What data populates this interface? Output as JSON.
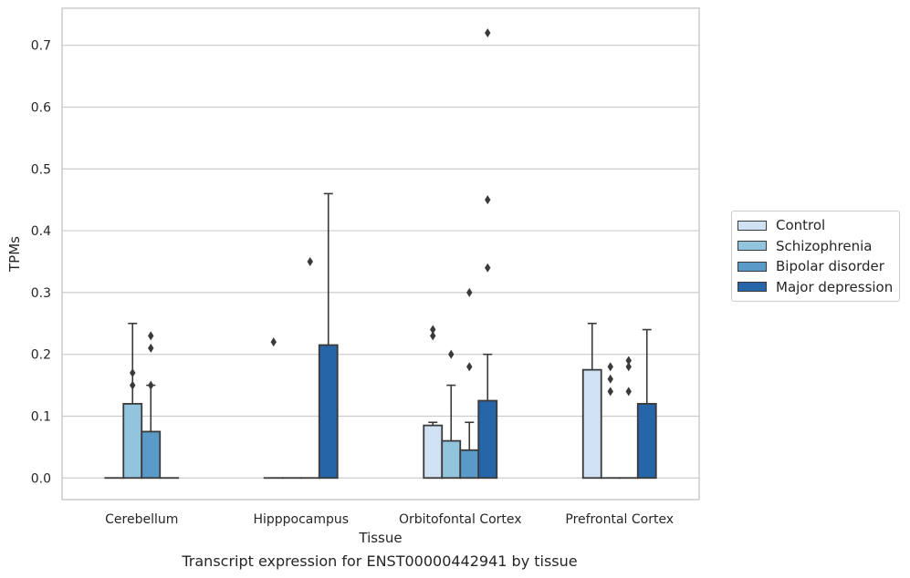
{
  "chart_data": {
    "type": "bar",
    "title": "Transcript expression for ENST00000442941 by tissue",
    "xlabel": "Tissue",
    "ylabel": "TPMs",
    "ylim": [
      -0.035,
      0.76
    ],
    "yticks": [
      "0.0",
      "0.1",
      "0.2",
      "0.3",
      "0.4",
      "0.5",
      "0.6",
      "0.7"
    ],
    "categories": [
      "Cerebellum",
      "Hipppocampus",
      "Orbitofontal Cortex",
      "Prefrontal Cortex"
    ],
    "grid": true,
    "legend_position": "right",
    "series": [
      {
        "name": "Control",
        "color": "#cfe1f2",
        "values": [
          0.0,
          0.0,
          0.085,
          0.175
        ],
        "whisker_high": [
          0.0,
          0.0,
          0.09,
          0.25
        ],
        "outliers": [
          [],
          [
            0.22
          ],
          [
            0.23,
            0.24
          ],
          []
        ]
      },
      {
        "name": "Schizophrenia",
        "color": "#93c4de",
        "values": [
          0.12,
          0.0,
          0.06,
          0.0
        ],
        "whisker_high": [
          0.25,
          0.0,
          0.15,
          0.0
        ],
        "outliers": [
          [
            0.15,
            0.17
          ],
          [],
          [
            0.2
          ],
          [
            0.14,
            0.16,
            0.18
          ]
        ]
      },
      {
        "name": "Bipolar disorder",
        "color": "#5a9ac8",
        "values": [
          0.075,
          0.0,
          0.045,
          0.0
        ],
        "whisker_high": [
          0.15,
          0.0,
          0.09,
          0.0
        ],
        "outliers": [
          [
            0.15,
            0.21,
            0.23
          ],
          [
            0.35
          ],
          [
            0.18,
            0.3
          ],
          [
            0.14,
            0.18,
            0.19
          ]
        ]
      },
      {
        "name": "Major depression",
        "color": "#2565a8",
        "values": [
          0.0,
          0.215,
          0.125,
          0.12
        ],
        "whisker_high": [
          0.0,
          0.46,
          0.2,
          0.24
        ],
        "outliers": [
          [],
          [],
          [
            0.34,
            0.45,
            0.72
          ],
          []
        ]
      }
    ]
  }
}
